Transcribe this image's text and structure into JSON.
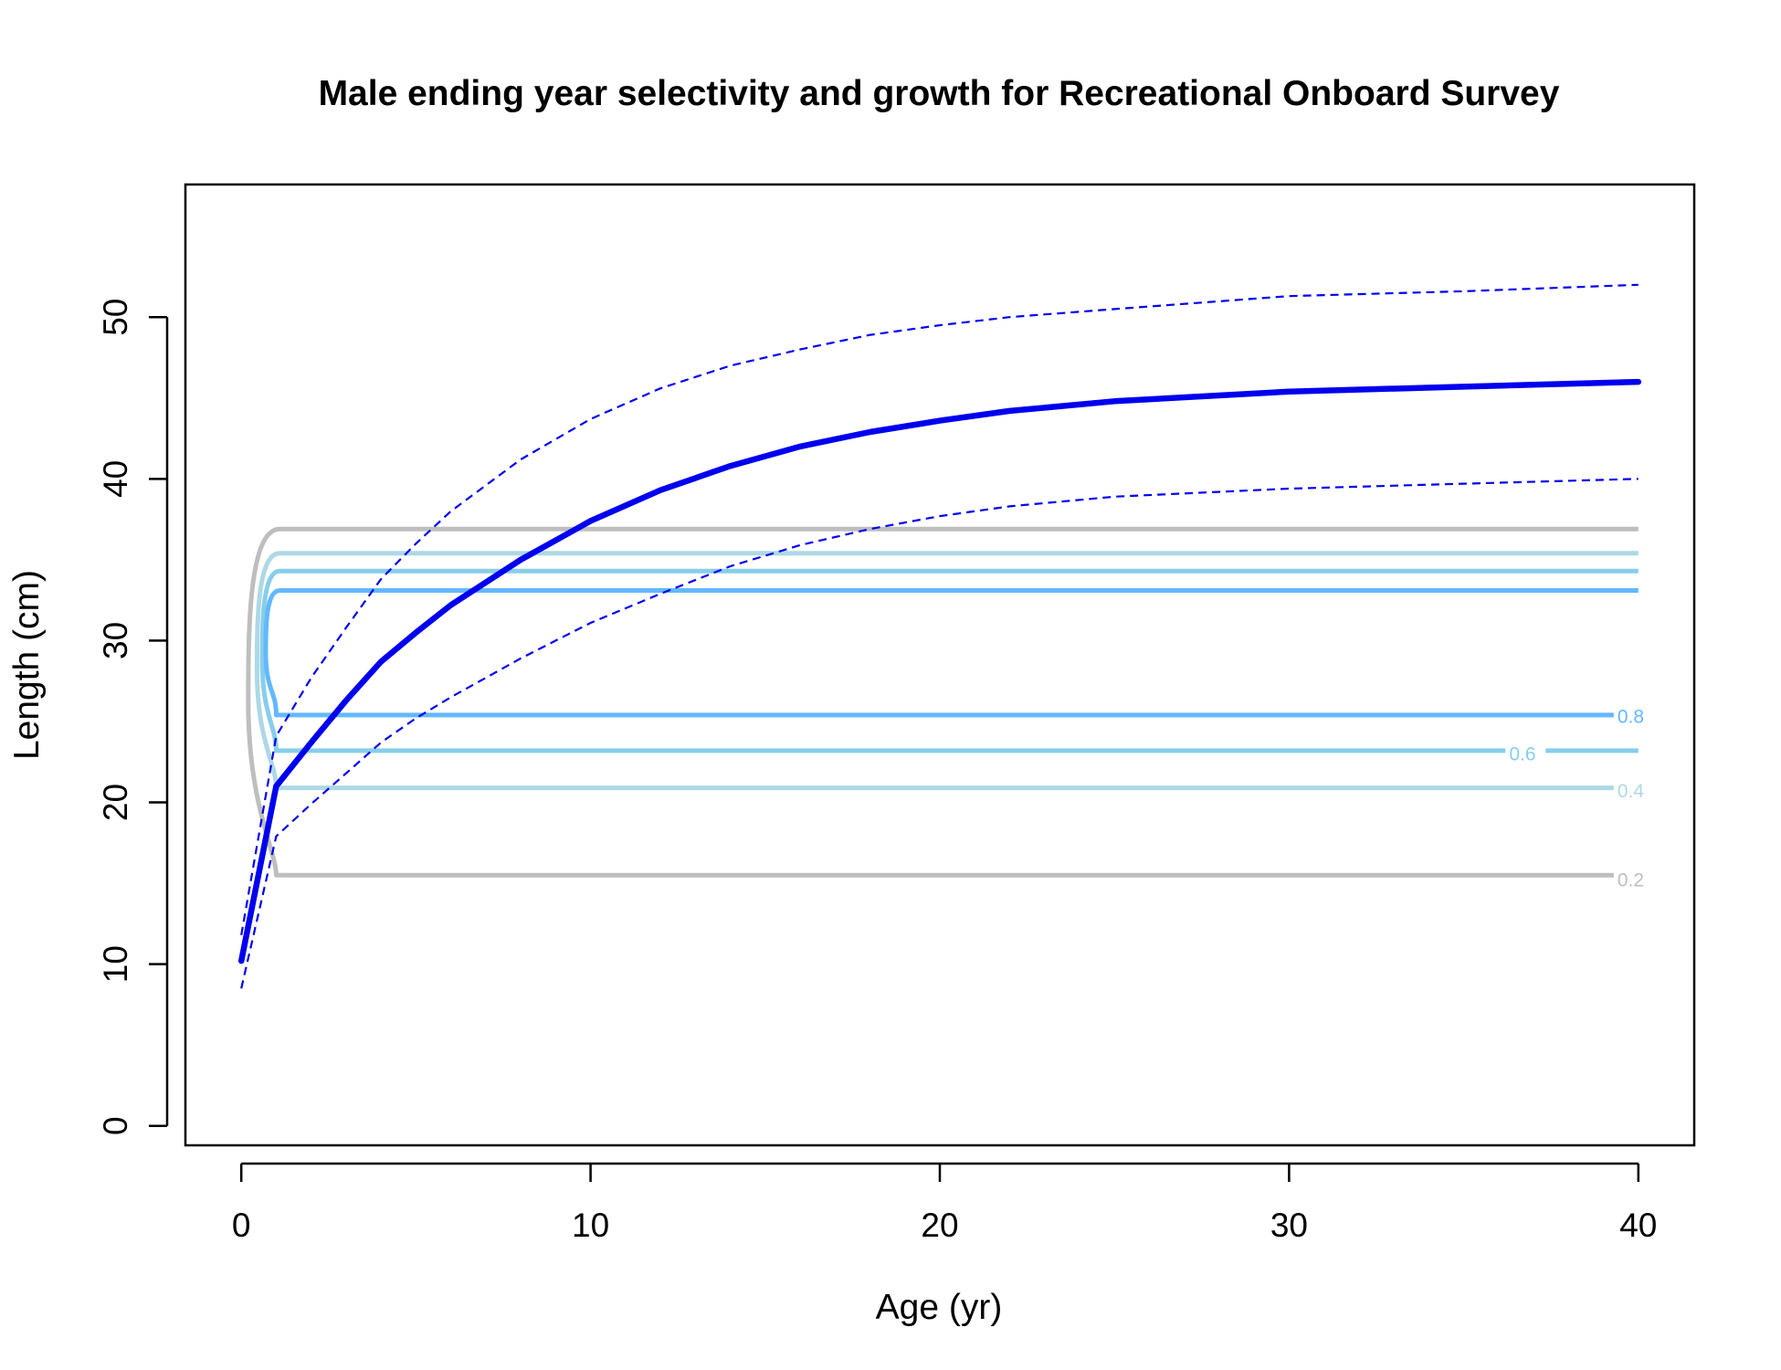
{
  "chart_data": {
    "type": "line",
    "title": "Male ending year selectivity and growth for Recreational Onboard Survey",
    "xlabel": "Age (yr)",
    "ylabel": "Length (cm)",
    "xlim": [
      -1.6,
      41.6
    ],
    "ylim": [
      -1.2,
      58.2
    ],
    "xticks": [
      0,
      10,
      20,
      30,
      40
    ],
    "yticks": [
      0,
      10,
      20,
      30,
      40,
      50
    ],
    "grid": false,
    "colors": {
      "growth": "#0000ee",
      "contour_0_2": "#bebebe",
      "contour_0_4": "#add8e6",
      "contour_0_6": "#87ceeb",
      "contour_0_8": "#63b8ff"
    },
    "growth": {
      "mean": {
        "x": [
          0,
          1,
          2,
          3,
          4,
          5,
          6,
          8,
          10,
          12,
          14,
          16,
          18,
          20,
          22,
          25,
          30,
          35,
          40
        ],
        "y": [
          10.2,
          21.0,
          23.7,
          26.3,
          28.7,
          30.5,
          32.2,
          35.0,
          37.4,
          39.3,
          40.8,
          42.0,
          42.9,
          43.6,
          44.2,
          44.8,
          45.4,
          45.7,
          46.0
        ]
      },
      "upper": {
        "x": [
          0,
          1,
          2,
          3,
          4,
          5,
          6,
          8,
          10,
          12,
          14,
          16,
          18,
          20,
          22,
          25,
          30,
          35,
          40
        ],
        "y": [
          11.8,
          24.1,
          27.7,
          30.8,
          33.8,
          36.0,
          38.0,
          41.2,
          43.7,
          45.6,
          47.0,
          48.0,
          48.9,
          49.5,
          50.0,
          50.5,
          51.3,
          51.6,
          52.0
        ]
      },
      "lower": {
        "x": [
          0,
          1,
          2,
          3,
          4,
          5,
          6,
          8,
          10,
          12,
          14,
          16,
          18,
          20,
          22,
          25,
          30,
          35,
          40
        ],
        "y": [
          8.5,
          17.9,
          19.9,
          21.8,
          23.7,
          25.2,
          26.5,
          28.9,
          31.1,
          32.9,
          34.6,
          35.9,
          36.9,
          37.7,
          38.3,
          38.9,
          39.4,
          39.7,
          40.0
        ]
      }
    },
    "contours": [
      {
        "level": "0.2",
        "lower": 15.5,
        "upper": 36.9,
        "x_start": 1.0,
        "x_end": 40,
        "bulge_x": 0.2,
        "has_lower_label": true
      },
      {
        "level": "0.4",
        "lower": 20.9,
        "upper": 35.4,
        "x_start": 1.0,
        "x_end": 40,
        "bulge_x": 0.45,
        "has_lower_label": true
      },
      {
        "level": "0.6",
        "lower": 23.2,
        "upper": 34.3,
        "x_start": 1.0,
        "x_end": 40,
        "bulge_x": 0.6,
        "has_lower_label": true
      },
      {
        "level": "0.8",
        "lower": 25.4,
        "upper": 33.1,
        "x_start": 1.0,
        "x_end": 40,
        "bulge_x": 0.7,
        "has_lower_label": true
      }
    ],
    "contour_labels": [
      {
        "text": "0.8",
        "x": 39.4,
        "y": 25.3,
        "series": "contour_0_8"
      },
      {
        "text": "0.6",
        "x": 36.3,
        "y": 23.0,
        "series": "contour_0_6"
      },
      {
        "text": "0.4",
        "x": 39.4,
        "y": 20.7,
        "series": "contour_0_4"
      },
      {
        "text": "0.2",
        "x": 39.4,
        "y": 15.2,
        "series": "contour_0_2"
      }
    ]
  }
}
